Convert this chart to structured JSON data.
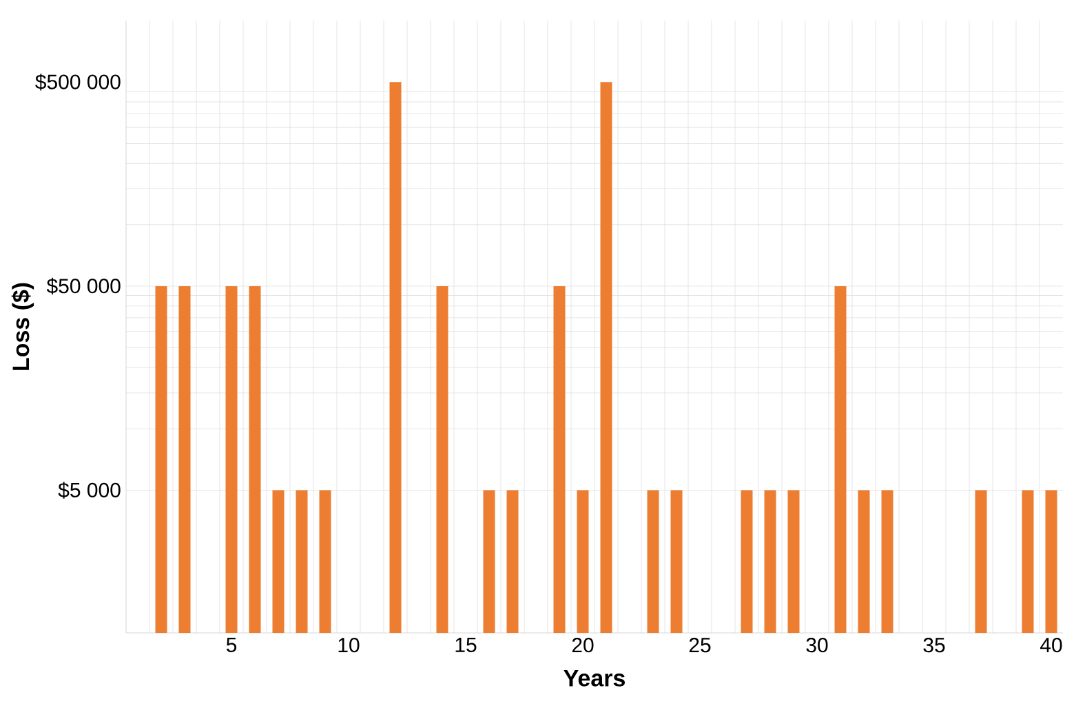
{
  "chart_data": {
    "type": "bar",
    "xlabel": "Years",
    "ylabel": "Loss ($)",
    "categories": [
      null,
      null,
      null,
      null,
      "5",
      null,
      null,
      null,
      null,
      "10",
      null,
      null,
      null,
      null,
      "15",
      null,
      null,
      null,
      null,
      "20",
      null,
      null,
      null,
      null,
      "25",
      null,
      null,
      null,
      null,
      "30",
      null,
      null,
      null,
      null,
      "35",
      null,
      null,
      null,
      null,
      "40"
    ],
    "values": [
      null,
      50000,
      50000,
      null,
      50000,
      50000,
      5000,
      5000,
      5000,
      null,
      null,
      500000,
      null,
      50000,
      null,
      5000,
      5000,
      null,
      50000,
      5000,
      500000,
      null,
      5000,
      5000,
      null,
      null,
      5000,
      5000,
      5000,
      null,
      50000,
      5000,
      5000,
      null,
      null,
      null,
      5000,
      null,
      5000,
      5000
    ],
    "color": "#ed7d31",
    "log": true,
    "ylim": [
      1000,
      1000000
    ],
    "yticks": [
      {
        "value": 5000,
        "label": "$5 000"
      },
      {
        "value": 50000,
        "label": "$50 000"
      },
      {
        "value": 500000,
        "label": "$500 000"
      }
    ],
    "grid": true
  }
}
